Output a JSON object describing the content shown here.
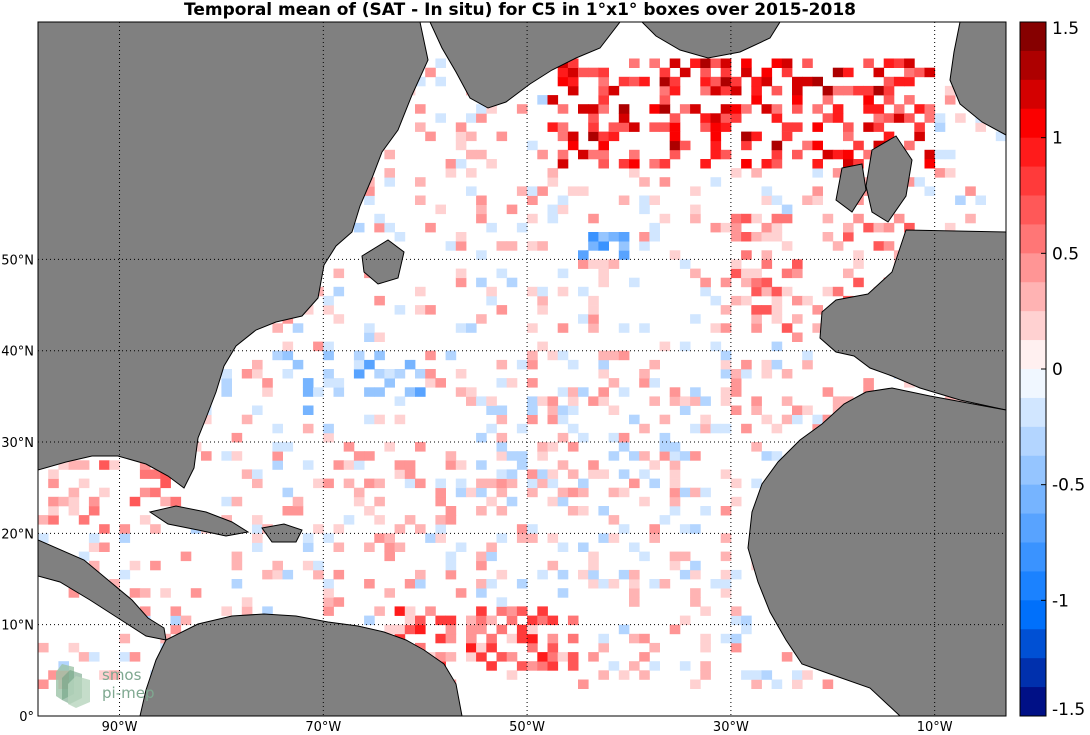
{
  "title": "Temporal mean of (SAT - In situ) for C5 in 1°x1° boxes over 2015-2018",
  "map": {
    "lon_range": [
      -98,
      -3
    ],
    "lat_range": [
      0,
      76
    ],
    "lon_ticks": [
      {
        "value": -90,
        "label": "90°W"
      },
      {
        "value": -70,
        "label": "70°W"
      },
      {
        "value": -50,
        "label": "50°W"
      },
      {
        "value": -30,
        "label": "30°W"
      },
      {
        "value": -10,
        "label": "10°W"
      }
    ],
    "lat_ticks": [
      {
        "value": 0,
        "label": "0°"
      },
      {
        "value": 10,
        "label": "10°N"
      },
      {
        "value": 20,
        "label": "20°N"
      },
      {
        "value": 30,
        "label": "30°N"
      },
      {
        "value": 40,
        "label": "40°N"
      },
      {
        "value": 50,
        "label": "50°N"
      }
    ],
    "land_color": "#808080",
    "grid_style": "dotted"
  },
  "colorbar": {
    "min": -1.5,
    "max": 1.5,
    "levels": 24,
    "ticks": [
      {
        "value": 1.5,
        "label": "1.5"
      },
      {
        "value": 1,
        "label": "1"
      },
      {
        "value": 0.5,
        "label": "0.5"
      },
      {
        "value": 0,
        "label": "0"
      },
      {
        "value": -0.5,
        "label": "-0.5"
      },
      {
        "value": -1,
        "label": "-1"
      },
      {
        "value": -1.5,
        "label": "-1.5"
      }
    ],
    "colormap": "blue-white-red"
  },
  "logo": {
    "line1": "smos",
    "line2": "pi-mep"
  },
  "chart_data": {
    "type": "heatmap",
    "cell_size_deg": 1,
    "value_range": [
      -1.5,
      1.5
    ],
    "regions": [
      {
        "lon": [
          -48,
          -10
        ],
        "lat": [
          60,
          72
        ],
        "mean_value": 0.9
      },
      {
        "lon": [
          -30,
          -10
        ],
        "lat": [
          42,
          55
        ],
        "mean_value": 0.35
      },
      {
        "lon": [
          -45,
          -40
        ],
        "lat": [
          50,
          53
        ],
        "mean_value": -0.6
      },
      {
        "lon": [
          -75,
          -60
        ],
        "lat": [
          33,
          40
        ],
        "mean_value": -0.3
      },
      {
        "lon": [
          -55,
          -20
        ],
        "lat": [
          15,
          35
        ],
        "mean_value": 0.05
      },
      {
        "lon": [
          -65,
          -45
        ],
        "lat": [
          5,
          12
        ],
        "mean_value": 0.5
      },
      {
        "lon": [
          -97,
          -83
        ],
        "lat": [
          20,
          29
        ],
        "mean_value": 0.3
      }
    ]
  }
}
